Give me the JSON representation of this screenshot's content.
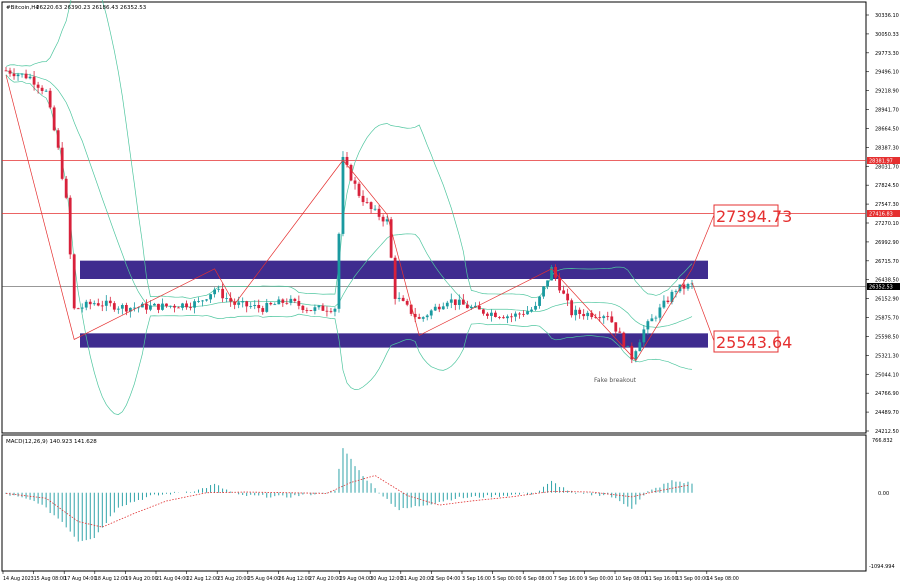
{
  "header": {
    "symbol": "#Bitcoin,H4",
    "ohlc": "26220.63 26390.23 26186.43 26352.53"
  },
  "annotations": {
    "upper_target": "27394.73",
    "lower_target": "25543.64",
    "fake_breakout": "Fake breakout"
  },
  "price_tags": {
    "red_line_1": "28381.97",
    "red_line_2": "27416.83",
    "current": "26352.53"
  },
  "macd": {
    "label": "MACD(12,26,9) 140.923 141.628",
    "axis_top": "766.832",
    "axis_zero": "0.00",
    "axis_bottom": "-1094.994"
  },
  "colors": {
    "bull": "#1a9aa0",
    "bear": "#d8213b",
    "bands": "#4fc69f",
    "zone": "#3f2c8f",
    "level_line": "#e53030",
    "signal": "#e03030"
  },
  "chart_data": {
    "type": "candlestick",
    "y_axis_ticks": [
      "30336.10",
      "30050.33",
      "29773.30",
      "29496.10",
      "29218.90",
      "28941.70",
      "28664.50",
      "28387.30",
      "28031.70",
      "27824.50",
      "27547.30",
      "27270.10",
      "26992.90",
      "26715.70",
      "26438.50",
      "26152.90",
      "25875.70",
      "25598.50",
      "25321.30",
      "25044.10",
      "24766.90",
      "24489.70",
      "24212.50"
    ],
    "x_axis_ticks": [
      "14 Aug 2023",
      "15 Aug 08:00",
      "17 Aug 04:00",
      "18 Aug 12:00",
      "19 Aug 20:00",
      "21 Aug 04:00",
      "22 Aug 12:00",
      "23 Aug 20:00",
      "25 Aug 04:00",
      "26 Aug 12:00",
      "27 Aug 20:00",
      "29 Aug 04:00",
      "30 Aug 12:00",
      "31 Aug 20:00",
      "2 Sep 04:00",
      "3 Sep 16:00",
      "5 Sep 00:00",
      "6 Sep 08:00",
      "7 Sep 16:00",
      "9 Sep 00:00",
      "10 Sep 08:00",
      "11 Sep 16:00",
      "13 Sep 00:00",
      "14 Sep 08:00"
    ],
    "y_range": [
      24212.5,
      30336.1
    ],
    "horizontal_levels": [
      28381.97,
      27416.83,
      26352.53
    ],
    "zones": [
      [
        26450,
        26720
      ],
      [
        25440,
        25650
      ]
    ],
    "anchors": [
      [
        0,
        29520
      ],
      [
        6,
        29420
      ],
      [
        10,
        29200
      ],
      [
        13,
        28350
      ],
      [
        15,
        27600
      ],
      [
        17,
        26000
      ],
      [
        22,
        26100
      ],
      [
        30,
        26030
      ],
      [
        40,
        26050
      ],
      [
        48,
        26100
      ],
      [
        52,
        26300
      ],
      [
        57,
        26080
      ],
      [
        64,
        26020
      ],
      [
        70,
        26130
      ],
      [
        76,
        26000
      ],
      [
        82,
        26030
      ],
      [
        84,
        28200
      ],
      [
        88,
        27700
      ],
      [
        91,
        27470
      ],
      [
        95,
        27300
      ],
      [
        97,
        26200
      ],
      [
        103,
        25850
      ],
      [
        110,
        26150
      ],
      [
        118,
        25980
      ],
      [
        126,
        25900
      ],
      [
        132,
        26020
      ],
      [
        136,
        26600
      ],
      [
        141,
        25950
      ],
      [
        150,
        25930
      ],
      [
        156,
        25300
      ],
      [
        159,
        25700
      ],
      [
        163,
        26000
      ],
      [
        167,
        26300
      ],
      [
        171,
        26360
      ]
    ],
    "macd_zero_range": [
      -1094.994,
      766.832
    ],
    "macd_anchors": [
      [
        0,
        -20
      ],
      [
        8,
        -140
      ],
      [
        14,
        -420
      ],
      [
        18,
        -700
      ],
      [
        22,
        -650
      ],
      [
        28,
        -200
      ],
      [
        36,
        -50
      ],
      [
        48,
        40
      ],
      [
        52,
        120
      ],
      [
        58,
        -40
      ],
      [
        70,
        -60
      ],
      [
        82,
        20
      ],
      [
        84,
        650
      ],
      [
        88,
        320
      ],
      [
        92,
        60
      ],
      [
        98,
        -250
      ],
      [
        104,
        -180
      ],
      [
        112,
        -80
      ],
      [
        124,
        -40
      ],
      [
        132,
        -10
      ],
      [
        136,
        160
      ],
      [
        142,
        -20
      ],
      [
        150,
        -30
      ],
      [
        156,
        -220
      ],
      [
        160,
        10
      ],
      [
        166,
        170
      ],
      [
        171,
        140
      ]
    ],
    "signal_anchors": [
      [
        0,
        -10
      ],
      [
        10,
        -80
      ],
      [
        18,
        -420
      ],
      [
        24,
        -500
      ],
      [
        32,
        -300
      ],
      [
        40,
        -120
      ],
      [
        50,
        0
      ],
      [
        60,
        10
      ],
      [
        80,
        -10
      ],
      [
        86,
        150
      ],
      [
        92,
        250
      ],
      [
        100,
        -40
      ],
      [
        108,
        -180
      ],
      [
        116,
        -120
      ],
      [
        126,
        -60
      ],
      [
        136,
        20
      ],
      [
        146,
        10
      ],
      [
        156,
        -60
      ],
      [
        162,
        20
      ],
      [
        171,
        120
      ]
    ]
  }
}
